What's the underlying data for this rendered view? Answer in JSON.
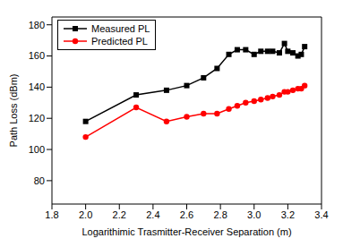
{
  "chart_data": {
    "type": "line",
    "x_label": "Logarithimic Trasmitter-Receiver Separation (m)",
    "y_label": "Path Loss (dBm)",
    "x": [
      2.0,
      2.3,
      2.48,
      2.6,
      2.7,
      2.78,
      2.85,
      2.9,
      2.95,
      3.0,
      3.04,
      3.08,
      3.11,
      3.15,
      3.18,
      3.2,
      3.23,
      3.26,
      3.28,
      3.3
    ],
    "series": [
      {
        "name": "Measured PL",
        "color": "#000000",
        "marker": "square",
        "values": [
          118,
          135,
          138,
          141,
          146,
          152,
          161,
          164,
          164,
          161,
          163,
          163,
          163,
          162,
          168,
          163,
          162,
          160,
          161,
          166
        ]
      },
      {
        "name": "Predicted PL",
        "color": "#ff0000",
        "marker": "circle",
        "values": [
          108,
          127,
          118,
          121,
          123,
          123,
          126,
          128,
          130,
          131,
          132,
          133,
          134,
          135,
          137,
          137,
          138,
          139,
          139,
          141
        ]
      }
    ],
    "xlim": [
      1.8,
      3.4
    ],
    "xticks": [
      1.8,
      {
        "value": 2,
        "label": "2.0"
      },
      2.2,
      2.4,
      2.6,
      2.8,
      {
        "value": 3,
        "label": "3.0"
      },
      3.2,
      3.4
    ],
    "ylim": [
      65,
      185
    ],
    "yticks": [
      80,
      100,
      120,
      140,
      160,
      180
    ],
    "grid": false,
    "legend": "top-left"
  }
}
